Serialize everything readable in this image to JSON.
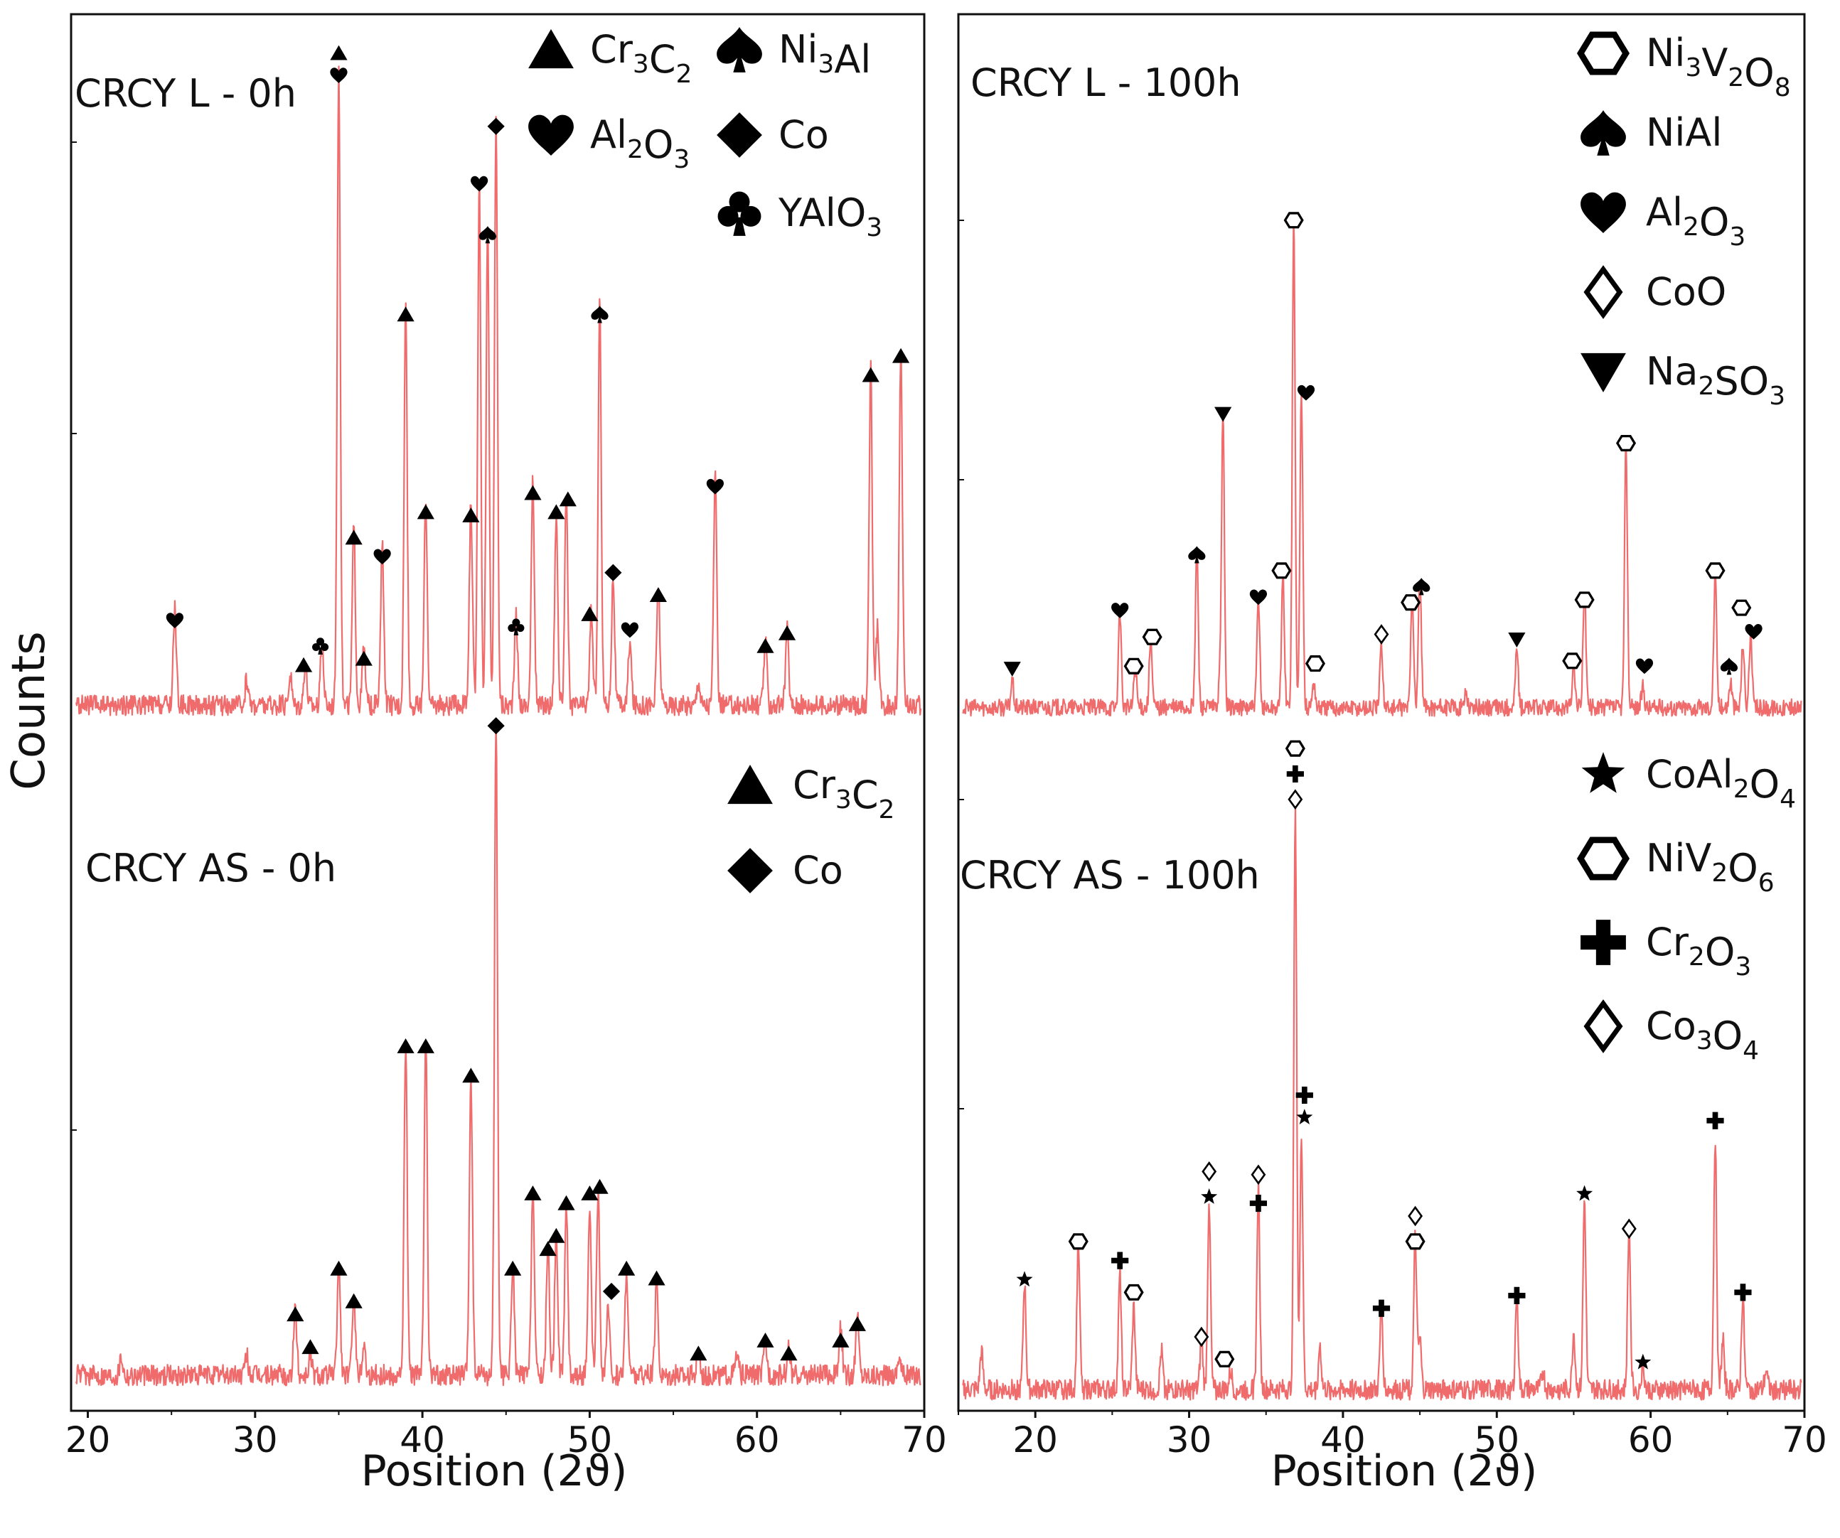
{
  "figure": {
    "ylabel": "Counts",
    "xlabel_left": "Position (2ϑ)",
    "xlabel_right": "Position (2ϑ)"
  },
  "chart_data": [
    {
      "type": "line",
      "id": "left_top",
      "title": "CRCY L - 0h",
      "xlabel": "Position (2ϑ)",
      "ylabel": "Counts",
      "xlim": [
        19,
        70
      ],
      "xticks": [
        20,
        30,
        40,
        50,
        60,
        70
      ],
      "ylim": [
        0,
        100
      ],
      "trace_color": "#f06b6b",
      "peaks": [
        [
          25.2,
          15
        ],
        [
          29.5,
          4
        ],
        [
          32.1,
          5
        ],
        [
          33.0,
          7
        ],
        [
          34.0,
          10
        ],
        [
          35.0,
          100
        ],
        [
          35.9,
          28
        ],
        [
          36.5,
          9
        ],
        [
          37.6,
          25
        ],
        [
          39.0,
          63
        ],
        [
          40.2,
          32
        ],
        [
          42.9,
          32
        ],
        [
          43.4,
          83
        ],
        [
          43.9,
          75
        ],
        [
          44.4,
          92
        ],
        [
          45.6,
          14
        ],
        [
          46.6,
          35
        ],
        [
          48.0,
          30
        ],
        [
          48.6,
          32
        ],
        [
          50.1,
          15
        ],
        [
          50.6,
          63
        ],
        [
          51.4,
          20
        ],
        [
          52.4,
          10
        ],
        [
          54.1,
          19
        ],
        [
          56.5,
          4
        ],
        [
          57.5,
          36
        ],
        [
          60.5,
          10
        ],
        [
          61.8,
          12
        ],
        [
          66.8,
          53
        ],
        [
          67.2,
          12
        ],
        [
          68.6,
          56
        ]
      ],
      "markers": [
        {
          "x": 25.2,
          "y": 15.5,
          "s": "heart"
        },
        {
          "x": 32.9,
          "y": 8.5,
          "s": "tri"
        },
        {
          "x": 33.9,
          "y": 11.5,
          "s": "club"
        },
        {
          "x": 35.0,
          "y": 104.5,
          "s": "tri"
        },
        {
          "x": 35.0,
          "y": 101,
          "s": "heart"
        },
        {
          "x": 35.9,
          "y": 28.5,
          "s": "tri"
        },
        {
          "x": 36.5,
          "y": 9.5,
          "s": "tri"
        },
        {
          "x": 37.6,
          "y": 25.5,
          "s": "heart"
        },
        {
          "x": 39.0,
          "y": 63.5,
          "s": "tri"
        },
        {
          "x": 40.2,
          "y": 32.5,
          "s": "tri"
        },
        {
          "x": 42.9,
          "y": 32,
          "s": "tri"
        },
        {
          "x": 43.4,
          "y": 84,
          "s": "heart"
        },
        {
          "x": 43.9,
          "y": 76,
          "s": "spade"
        },
        {
          "x": 44.4,
          "y": 93,
          "s": "diamond"
        },
        {
          "x": 45.6,
          "y": 14.5,
          "s": "club"
        },
        {
          "x": 46.6,
          "y": 35.5,
          "s": "tri"
        },
        {
          "x": 48.0,
          "y": 32.5,
          "s": "tri"
        },
        {
          "x": 48.7,
          "y": 34.5,
          "s": "tri"
        },
        {
          "x": 50.0,
          "y": 16.5,
          "s": "tri"
        },
        {
          "x": 50.6,
          "y": 63.5,
          "s": "spade"
        },
        {
          "x": 51.4,
          "y": 23,
          "s": "diamond"
        },
        {
          "x": 52.4,
          "y": 14,
          "s": "heart"
        },
        {
          "x": 54.1,
          "y": 19.5,
          "s": "tri"
        },
        {
          "x": 57.5,
          "y": 36.5,
          "s": "heart"
        },
        {
          "x": 60.5,
          "y": 11.5,
          "s": "tri"
        },
        {
          "x": 61.8,
          "y": 13.5,
          "s": "tri"
        },
        {
          "x": 66.8,
          "y": 54,
          "s": "tri"
        },
        {
          "x": 68.6,
          "y": 57,
          "s": "tri"
        }
      ],
      "legend": [
        {
          "symbol": "tri",
          "label": "Cr",
          "s1": "3",
          "m": "C",
          "s2": "2"
        },
        {
          "symbol": "spade",
          "label": "Ni",
          "s1": "3",
          "m": "Al",
          "s2": ""
        },
        {
          "symbol": "heart",
          "label": "Al",
          "s1": "2",
          "m": "O",
          "s2": "3"
        },
        {
          "symbol": "diamond",
          "label": "Co",
          "s1": "",
          "m": "",
          "s2": ""
        },
        {
          "symbol": "club",
          "label": "YAlO",
          "s1": "3",
          "m": "",
          "s2": ""
        }
      ]
    },
    {
      "type": "line",
      "id": "right_top",
      "title": "CRCY L - 100h",
      "xlabel": "Position (2ϑ)",
      "ylabel": "Counts",
      "xlim": [
        15,
        70
      ],
      "xticks": [
        20,
        30,
        40,
        50,
        60,
        70
      ],
      "ylim": [
        0,
        100
      ],
      "trace_color": "#f06b6b",
      "peaks": [
        [
          18.5,
          5
        ],
        [
          25.5,
          18
        ],
        [
          26.5,
          8
        ],
        [
          27.5,
          13
        ],
        [
          30.5,
          30
        ],
        [
          32.0,
          4
        ],
        [
          32.2,
          55
        ],
        [
          34.5,
          20
        ],
        [
          36.1,
          25
        ],
        [
          36.8,
          92
        ],
        [
          37.3,
          60
        ],
        [
          38.1,
          5
        ],
        [
          42.5,
          12
        ],
        [
          44.5,
          22
        ],
        [
          45.0,
          25
        ],
        [
          48.0,
          3
        ],
        [
          51.3,
          11
        ],
        [
          55.0,
          8
        ],
        [
          55.7,
          23
        ],
        [
          58.4,
          50
        ],
        [
          59.5,
          4
        ],
        [
          64.2,
          25
        ],
        [
          65.2,
          5
        ],
        [
          66.0,
          12
        ],
        [
          66.5,
          14
        ]
      ],
      "markers": [
        {
          "x": 18.5,
          "y": 9.5,
          "s": "tri_down"
        },
        {
          "x": 25.5,
          "y": 20.5,
          "s": "heart"
        },
        {
          "x": 26.4,
          "y": 10,
          "s": "hex_o"
        },
        {
          "x": 27.6,
          "y": 15.5,
          "s": "hex_o"
        },
        {
          "x": 30.5,
          "y": 31,
          "s": "spade"
        },
        {
          "x": 32.2,
          "y": 57.5,
          "s": "tri_down"
        },
        {
          "x": 34.5,
          "y": 23,
          "s": "heart"
        },
        {
          "x": 36.0,
          "y": 28,
          "s": "hex_o"
        },
        {
          "x": 36.8,
          "y": 94,
          "s": "hex_o"
        },
        {
          "x": 37.6,
          "y": 61.5,
          "s": "heart"
        },
        {
          "x": 38.2,
          "y": 10.5,
          "s": "hex_o"
        },
        {
          "x": 42.5,
          "y": 16,
          "s": "dia_o"
        },
        {
          "x": 44.4,
          "y": 22,
          "s": "hex_o"
        },
        {
          "x": 45.1,
          "y": 25,
          "s": "spade"
        },
        {
          "x": 51.3,
          "y": 15,
          "s": "tri_down"
        },
        {
          "x": 54.9,
          "y": 11,
          "s": "hex_o"
        },
        {
          "x": 55.7,
          "y": 22.5,
          "s": "hex_o"
        },
        {
          "x": 58.4,
          "y": 52,
          "s": "hex_o"
        },
        {
          "x": 59.6,
          "y": 10,
          "s": "heart"
        },
        {
          "x": 64.2,
          "y": 28,
          "s": "hex_o"
        },
        {
          "x": 65.1,
          "y": 10,
          "s": "spade"
        },
        {
          "x": 65.9,
          "y": 21,
          "s": "hex_o"
        },
        {
          "x": 66.7,
          "y": 16.5,
          "s": "heart"
        }
      ],
      "legend": [
        {
          "symbol": "hex_o",
          "label": "Ni",
          "s1": "3",
          "m": "V",
          "s2": "2",
          "m2": "O",
          "s3": "8"
        },
        {
          "symbol": "spade",
          "label": "NiAl",
          "s1": "",
          "m": "",
          "s2": ""
        },
        {
          "symbol": "heart",
          "label": "Al",
          "s1": "2",
          "m": "O",
          "s2": "3"
        },
        {
          "symbol": "dia_o",
          "label": "CoO",
          "s1": "",
          "m": "",
          "s2": ""
        },
        {
          "symbol": "tri_down",
          "label": "Na",
          "s1": "2",
          "m": "SO",
          "s2": "3"
        }
      ]
    },
    {
      "type": "line",
      "id": "left_bottom",
      "title": "CRCY AS - 0h",
      "xlabel": "Position (2ϑ)",
      "ylabel": "Counts",
      "xlim": [
        19,
        70
      ],
      "xticks": [
        20,
        30,
        40,
        50,
        60,
        70
      ],
      "ylim": [
        0,
        100
      ],
      "trace_color": "#f06b6b",
      "peaks": [
        [
          22.0,
          3
        ],
        [
          29.5,
          3
        ],
        [
          32.4,
          10
        ],
        [
          33.3,
          3
        ],
        [
          35.0,
          17
        ],
        [
          35.9,
          13
        ],
        [
          36.5,
          5
        ],
        [
          39.0,
          51
        ],
        [
          40.2,
          52
        ],
        [
          42.9,
          46
        ],
        [
          44.4,
          100
        ],
        [
          45.4,
          17
        ],
        [
          46.6,
          29
        ],
        [
          47.5,
          20
        ],
        [
          48.0,
          22
        ],
        [
          48.6,
          26
        ],
        [
          50.0,
          25
        ],
        [
          50.5,
          28
        ],
        [
          51.1,
          10
        ],
        [
          52.2,
          16
        ],
        [
          54.0,
          14
        ],
        [
          56.5,
          4
        ],
        [
          58.8,
          3
        ],
        [
          60.5,
          5
        ],
        [
          61.9,
          4
        ],
        [
          65.0,
          7
        ],
        [
          66.0,
          9
        ],
        [
          68.5,
          3
        ]
      ],
      "markers": [
        {
          "x": 32.4,
          "y": 11.5,
          "s": "tri"
        },
        {
          "x": 33.3,
          "y": 6.5,
          "s": "tri"
        },
        {
          "x": 35.0,
          "y": 18.5,
          "s": "tri"
        },
        {
          "x": 35.9,
          "y": 13.5,
          "s": "tri"
        },
        {
          "x": 39.0,
          "y": 52.5,
          "s": "tri"
        },
        {
          "x": 40.2,
          "y": 52.5,
          "s": "tri"
        },
        {
          "x": 42.9,
          "y": 48,
          "s": "tri"
        },
        {
          "x": 44.4,
          "y": 101.5,
          "s": "diamond"
        },
        {
          "x": 45.4,
          "y": 18.5,
          "s": "tri"
        },
        {
          "x": 46.6,
          "y": 30,
          "s": "tri"
        },
        {
          "x": 47.5,
          "y": 21.5,
          "s": "tri"
        },
        {
          "x": 48.0,
          "y": 23.5,
          "s": "tri"
        },
        {
          "x": 48.6,
          "y": 28.5,
          "s": "tri"
        },
        {
          "x": 50.0,
          "y": 30,
          "s": "tri"
        },
        {
          "x": 50.6,
          "y": 31,
          "s": "tri"
        },
        {
          "x": 51.3,
          "y": 15,
          "s": "diamond"
        },
        {
          "x": 52.2,
          "y": 18.5,
          "s": "tri"
        },
        {
          "x": 54.0,
          "y": 17,
          "s": "tri"
        },
        {
          "x": 56.5,
          "y": 5.5,
          "s": "tri"
        },
        {
          "x": 60.5,
          "y": 7.5,
          "s": "tri"
        },
        {
          "x": 61.9,
          "y": 5.5,
          "s": "tri"
        },
        {
          "x": 65.0,
          "y": 7.5,
          "s": "tri"
        },
        {
          "x": 66.0,
          "y": 10,
          "s": "tri"
        }
      ],
      "legend": [
        {
          "symbol": "tri",
          "label": "Cr",
          "s1": "3",
          "m": "C",
          "s2": "2"
        },
        {
          "symbol": "diamond",
          "label": "Co",
          "s1": "",
          "m": "",
          "s2": ""
        }
      ]
    },
    {
      "type": "line",
      "id": "right_bottom",
      "title": "CRCY AS - 100h",
      "xlabel": "Position (2ϑ)",
      "ylabel": "Counts",
      "xlim": [
        15,
        70
      ],
      "xticks": [
        20,
        30,
        40,
        50,
        60,
        70
      ],
      "ylim": [
        0,
        100
      ],
      "trace_color": "#f06b6b",
      "peaks": [
        [
          16.5,
          6
        ],
        [
          19.3,
          17
        ],
        [
          22.8,
          24
        ],
        [
          25.5,
          18
        ],
        [
          26.4,
          13
        ],
        [
          28.2,
          6
        ],
        [
          30.8,
          8
        ],
        [
          31.3,
          30
        ],
        [
          32.7,
          3
        ],
        [
          34.5,
          32
        ],
        [
          36.9,
          92
        ],
        [
          37.3,
          40
        ],
        [
          38.5,
          7
        ],
        [
          42.5,
          13
        ],
        [
          44.7,
          24
        ],
        [
          45.0,
          8
        ],
        [
          51.3,
          15
        ],
        [
          53.0,
          3
        ],
        [
          55.0,
          9
        ],
        [
          55.7,
          30
        ],
        [
          58.6,
          26
        ],
        [
          59.5,
          4
        ],
        [
          64.2,
          40
        ],
        [
          64.7,
          8
        ],
        [
          66.0,
          15
        ],
        [
          67.5,
          3
        ]
      ],
      "markers": [
        {
          "x": 19.3,
          "y": 19.5,
          "s": "star"
        },
        {
          "x": 22.8,
          "y": 25.5,
          "s": "hex_o"
        },
        {
          "x": 25.5,
          "y": 22.5,
          "s": "plus"
        },
        {
          "x": 26.4,
          "y": 17.5,
          "s": "hex_o"
        },
        {
          "x": 30.8,
          "y": 10.5,
          "s": "dia_o"
        },
        {
          "x": 31.3,
          "y": 32.5,
          "s": "star"
        },
        {
          "x": 31.3,
          "y": 36.5,
          "s": "dia_o"
        },
        {
          "x": 32.3,
          "y": 7,
          "s": "hex_o"
        },
        {
          "x": 34.5,
          "y": 31.5,
          "s": "plus"
        },
        {
          "x": 34.5,
          "y": 36,
          "s": "dia_o"
        },
        {
          "x": 36.9,
          "y": 103,
          "s": "hex_o"
        },
        {
          "x": 36.9,
          "y": 99,
          "s": "plus"
        },
        {
          "x": 36.9,
          "y": 95,
          "s": "dia_o"
        },
        {
          "x": 37.5,
          "y": 48.5,
          "s": "plus"
        },
        {
          "x": 37.5,
          "y": 45,
          "s": "star"
        },
        {
          "x": 42.5,
          "y": 15,
          "s": "plus"
        },
        {
          "x": 44.7,
          "y": 29.5,
          "s": "dia_o"
        },
        {
          "x": 44.7,
          "y": 25.5,
          "s": "hex_o"
        },
        {
          "x": 51.3,
          "y": 17,
          "s": "plus"
        },
        {
          "x": 55.7,
          "y": 33,
          "s": "star"
        },
        {
          "x": 58.6,
          "y": 27.5,
          "s": "dia_o"
        },
        {
          "x": 59.5,
          "y": 6.5,
          "s": "star"
        },
        {
          "x": 64.2,
          "y": 44.5,
          "s": "plus"
        },
        {
          "x": 66.0,
          "y": 17.5,
          "s": "plus"
        }
      ],
      "legend": [
        {
          "symbol": "star",
          "label": "CoAl",
          "s1": "2",
          "m": "O",
          "s2": "4"
        },
        {
          "symbol": "hex_o",
          "label": "NiV",
          "s1": "2",
          "m": "O",
          "s2": "6"
        },
        {
          "symbol": "plus",
          "label": "Cr",
          "s1": "2",
          "m": "O",
          "s2": "3"
        },
        {
          "symbol": "dia_o",
          "label": "Co",
          "s1": "3",
          "m": "O",
          "s2": "4"
        }
      ]
    }
  ]
}
